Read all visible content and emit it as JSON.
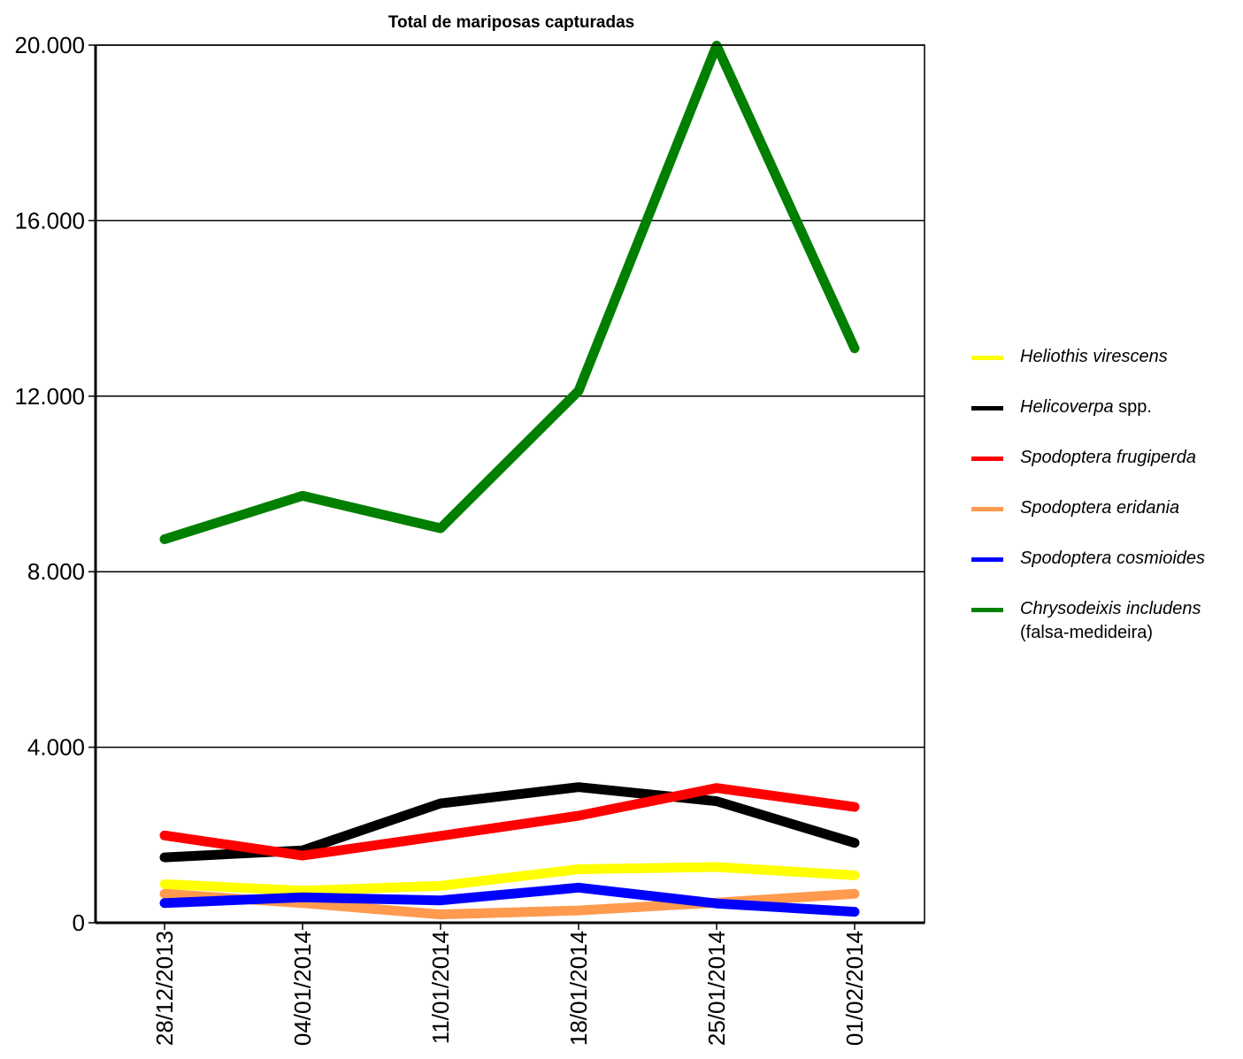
{
  "chart_data": {
    "type": "line",
    "title": "Total de mariposas capturadas",
    "xlabel": "",
    "ylabel": "",
    "ylim": [
      0,
      20000
    ],
    "yticks": [
      "0",
      "4.000",
      "8.000",
      "12.000",
      "16.000",
      "20.000"
    ],
    "ytick_values": [
      0,
      4000,
      8000,
      12000,
      16000,
      20000
    ],
    "grid": true,
    "legend_position": "right",
    "categories": [
      "28/12/2013",
      "04/01/2014",
      "11/01/2014",
      "18/01/2014",
      "25/01/2014",
      "01/02/2014"
    ],
    "series": [
      {
        "name_italic": "Heliothis virescens",
        "name_suffix": "",
        "name_line2": "",
        "color": "#ffff00",
        "values": [
          880,
          730,
          840,
          1220,
          1270,
          1080
        ]
      },
      {
        "name_italic": "Helicoverpa",
        "name_suffix": " spp.",
        "name_line2": "",
        "color": "#000000",
        "values": [
          1490,
          1650,
          2720,
          3090,
          2770,
          1820
        ]
      },
      {
        "name_italic": "Spodoptera frugiperda",
        "name_suffix": "",
        "name_line2": "",
        "color": "#ff0000",
        "values": [
          1990,
          1530,
          1980,
          2440,
          3070,
          2640
        ]
      },
      {
        "name_italic": "Spodoptera eridania",
        "name_suffix": "",
        "name_line2": "",
        "color": "#ff9a4f",
        "values": [
          660,
          450,
          190,
          280,
          460,
          660
        ]
      },
      {
        "name_italic": "Spodoptera cosmioides",
        "name_suffix": "",
        "name_line2": "",
        "color": "#0000ff",
        "values": [
          450,
          580,
          510,
          800,
          440,
          250
        ]
      },
      {
        "name_italic": "Chrysodeixis includens",
        "name_suffix": "",
        "name_line2": "(falsa-medideira)",
        "color": "#007f00",
        "values": [
          8740,
          9730,
          8990,
          12120,
          19990,
          13090
        ]
      }
    ]
  }
}
